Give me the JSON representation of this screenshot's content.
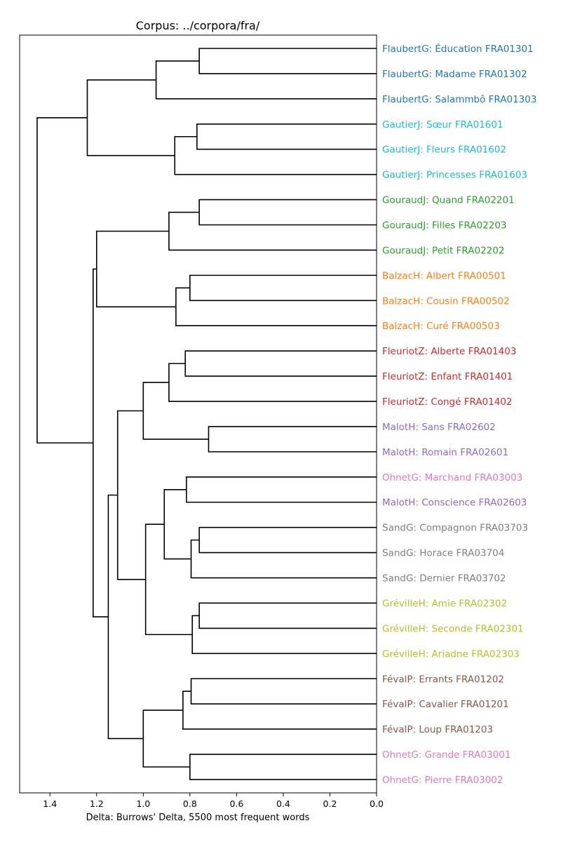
{
  "chart_data": {
    "type": "dendrogram",
    "title": "Corpus: ../corpora/fra/",
    "xlabel": "Delta: Burrows' Delta, 5500 most frequent words",
    "ylabel": "",
    "orientation": "left",
    "xlim": [
      1.53,
      0.0
    ],
    "xticks": [
      1.4,
      1.2,
      1.0,
      0.8,
      0.6,
      0.4,
      0.2,
      0.0
    ],
    "xtick_labels": [
      "1.4",
      "1.2",
      "1.0",
      "0.8",
      "0.6",
      "0.4",
      "0.2",
      "0.0"
    ],
    "grid": false,
    "leaves": [
      {
        "label": "FlaubertG: Éducation FRA01301",
        "color": "#1f77b4"
      },
      {
        "label": "FlaubertG: Madame FRA01302",
        "color": "#1f77b4"
      },
      {
        "label": "FlaubertG: Salammbô FRA01303",
        "color": "#1f77b4"
      },
      {
        "label": "GautierJ: Sœur FRA01601",
        "color": "#17becf"
      },
      {
        "label": "GautierJ: Fleurs FRA01602",
        "color": "#17becf"
      },
      {
        "label": "GautierJ: Princesses FRA01603",
        "color": "#17becf"
      },
      {
        "label": "GouraudJ: Quand FRA02201",
        "color": "#2ca02c"
      },
      {
        "label": "GouraudJ: Filles FRA02203",
        "color": "#2ca02c"
      },
      {
        "label": "GouraudJ: Petit FRA02202",
        "color": "#2ca02c"
      },
      {
        "label": "BalzacH: Albert FRA00501",
        "color": "#ff7f0e"
      },
      {
        "label": "BalzacH: Cousin FRA00502",
        "color": "#ff7f0e"
      },
      {
        "label": "BalzacH: Curé FRA00503",
        "color": "#ff7f0e"
      },
      {
        "label": "FleuriotZ: Alberte FRA01403",
        "color": "#d62728"
      },
      {
        "label": "FleuriotZ: Enfant FRA01401",
        "color": "#d62728"
      },
      {
        "label": "FleuriotZ: Congé FRA01402",
        "color": "#d62728"
      },
      {
        "label": "MalotH: Sans FRA02602",
        "color": "#9467bd"
      },
      {
        "label": "MalotH: Romain FRA02601",
        "color": "#9467bd"
      },
      {
        "label": "OhnetG: Marchand FRA03003",
        "color": "#e377c2"
      },
      {
        "label": "MalotH: Conscience FRA02603",
        "color": "#9467bd"
      },
      {
        "label": "SandG: Compagnon FRA03703",
        "color": "#7f7f7f"
      },
      {
        "label": "SandG: Horace FRA03704",
        "color": "#7f7f7f"
      },
      {
        "label": "SandG: Dernier FRA03702",
        "color": "#7f7f7f"
      },
      {
        "label": "GrévilleH: Amie FRA02302",
        "color": "#bcbd22"
      },
      {
        "label": "GrévilleH: Seconde FRA02301",
        "color": "#bcbd22"
      },
      {
        "label": "GrévilleH: Ariadne FRA02303",
        "color": "#bcbd22"
      },
      {
        "label": "FévalP: Errants FRA01202",
        "color": "#8c564b"
      },
      {
        "label": "FévalP: Cavalier FRA01201",
        "color": "#8c564b"
      },
      {
        "label": "FévalP: Loup FRA01203",
        "color": "#8c564b"
      },
      {
        "label": "OhnetG: Grande FRA03001",
        "color": "#e377c2"
      },
      {
        "label": "OhnetG: Pierre FRA03002",
        "color": "#e377c2"
      }
    ],
    "merges": [
      {
        "id": "m1",
        "left": 0,
        "right": 1,
        "height": 0.76
      },
      {
        "id": "m2",
        "left": "m1",
        "right": 2,
        "height": 0.945
      },
      {
        "id": "m3",
        "left": 3,
        "right": 4,
        "height": 0.77
      },
      {
        "id": "m4",
        "left": "m3",
        "right": 5,
        "height": 0.865
      },
      {
        "id": "m5",
        "left": "m2",
        "right": "m4",
        "height": 1.24
      },
      {
        "id": "m6",
        "left": 6,
        "right": 7,
        "height": 0.76
      },
      {
        "id": "m7",
        "left": "m6",
        "right": 8,
        "height": 0.89
      },
      {
        "id": "m8",
        "left": 9,
        "right": 10,
        "height": 0.8
      },
      {
        "id": "m9",
        "left": "m8",
        "right": 11,
        "height": 0.86
      },
      {
        "id": "m10",
        "left": "m7",
        "right": "m9",
        "height": 1.2
      },
      {
        "id": "m11",
        "left": 12,
        "right": 13,
        "height": 0.82
      },
      {
        "id": "m12",
        "left": "m11",
        "right": 14,
        "height": 0.89
      },
      {
        "id": "m13",
        "left": 15,
        "right": 16,
        "height": 0.72
      },
      {
        "id": "m14",
        "left": "m12",
        "right": "m13",
        "height": 1.0
      },
      {
        "id": "m15",
        "left": 17,
        "right": 18,
        "height": 0.815
      },
      {
        "id": "m16",
        "left": 19,
        "right": 20,
        "height": 0.76
      },
      {
        "id": "m17",
        "left": "m16",
        "right": 21,
        "height": 0.795
      },
      {
        "id": "m18",
        "left": "m15",
        "right": "m17",
        "height": 0.91
      },
      {
        "id": "m19",
        "left": 22,
        "right": 23,
        "height": 0.76
      },
      {
        "id": "m20",
        "left": "m19",
        "right": 24,
        "height": 0.79
      },
      {
        "id": "m21",
        "left": "m18",
        "right": "m20",
        "height": 0.99
      },
      {
        "id": "m22",
        "left": "m14",
        "right": "m21",
        "height": 1.11
      },
      {
        "id": "m23",
        "left": 25,
        "right": 26,
        "height": 0.795
      },
      {
        "id": "m24",
        "left": "m23",
        "right": 27,
        "height": 0.83
      },
      {
        "id": "m25",
        "left": 28,
        "right": 29,
        "height": 0.8
      },
      {
        "id": "m26",
        "left": "m24",
        "right": "m25",
        "height": 1.0
      },
      {
        "id": "m27",
        "left": "m22",
        "right": "m26",
        "height": 1.15
      },
      {
        "id": "m28",
        "left": "m10",
        "right": "m27",
        "height": 1.215
      },
      {
        "id": "m29",
        "left": "m5",
        "right": "m28",
        "height": 1.455
      }
    ]
  }
}
